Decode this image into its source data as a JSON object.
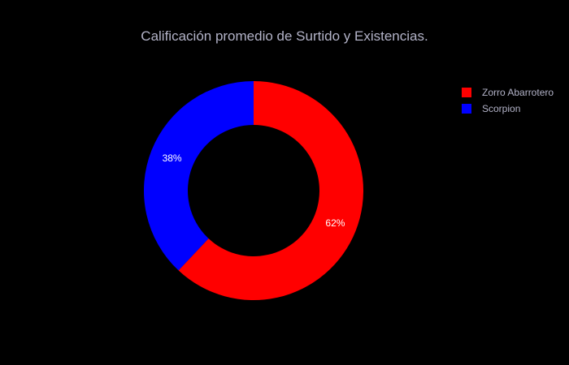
{
  "chart_data": {
    "type": "pie",
    "title": "Calificación promedio de Surtido y Existencias.",
    "hole": 0.6,
    "slices": [
      {
        "label": "Zorro Abarrotero",
        "value": 62,
        "text": "62%",
        "color": "#ff0000"
      },
      {
        "label": "Scorpion",
        "value": 38,
        "text": "38%",
        "color": "#0000ff"
      }
    ],
    "legend_position": "top-right",
    "background": "#000000"
  }
}
